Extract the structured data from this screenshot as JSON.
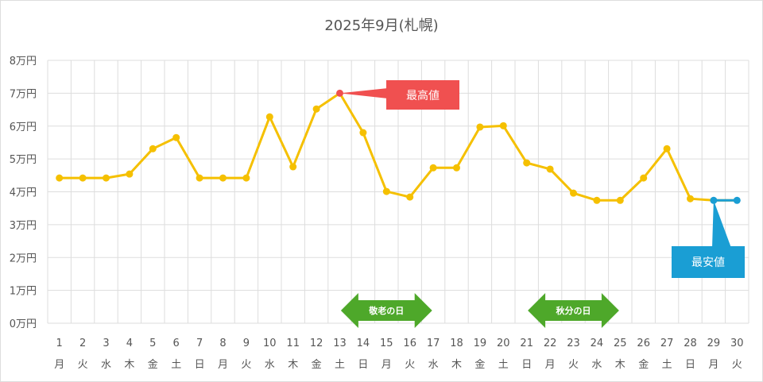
{
  "chart_data": {
    "type": "line",
    "title": "2025年9月(札幌)",
    "x": [
      1,
      2,
      3,
      4,
      5,
      6,
      7,
      8,
      9,
      10,
      11,
      12,
      13,
      14,
      15,
      16,
      17,
      18,
      19,
      20,
      21,
      22,
      23,
      24,
      25,
      26,
      27,
      28,
      29,
      30
    ],
    "weekdays": [
      "月",
      "火",
      "水",
      "木",
      "金",
      "土",
      "日",
      "月",
      "火",
      "水",
      "木",
      "金",
      "土",
      "日",
      "月",
      "火",
      "水",
      "木",
      "金",
      "土",
      "日",
      "月",
      "火",
      "水",
      "木",
      "金",
      "土",
      "日",
      "月",
      "火"
    ],
    "values": [
      4.42,
      4.42,
      4.42,
      4.54,
      5.31,
      5.65,
      4.42,
      4.42,
      4.42,
      6.28,
      4.76,
      6.52,
      7.0,
      5.8,
      4.01,
      3.84,
      4.73,
      4.73,
      5.97,
      6.01,
      4.88,
      4.69,
      3.96,
      3.74,
      3.74,
      4.42,
      5.31,
      3.79,
      3.74,
      3.74
    ],
    "unit": "万円",
    "yticks": [
      "0万円",
      "1万円",
      "2万円",
      "3万円",
      "4万円",
      "5万円",
      "6万円",
      "7万円",
      "8万円"
    ],
    "ylim": [
      0,
      8
    ],
    "grid": true,
    "line_color": "#f5c000",
    "annotations": {
      "max": {
        "label": "最高値",
        "day": 13,
        "color": "#f05050"
      },
      "min": {
        "label": "最安値",
        "days": [
          29,
          30
        ],
        "color": "#1a9ed4"
      }
    },
    "holidays": [
      {
        "label": "敬老の日",
        "from": 14,
        "to": 16
      },
      {
        "label": "秋分の日",
        "from": 22,
        "to": 24
      }
    ],
    "holiday_color": "#4ea82a"
  }
}
